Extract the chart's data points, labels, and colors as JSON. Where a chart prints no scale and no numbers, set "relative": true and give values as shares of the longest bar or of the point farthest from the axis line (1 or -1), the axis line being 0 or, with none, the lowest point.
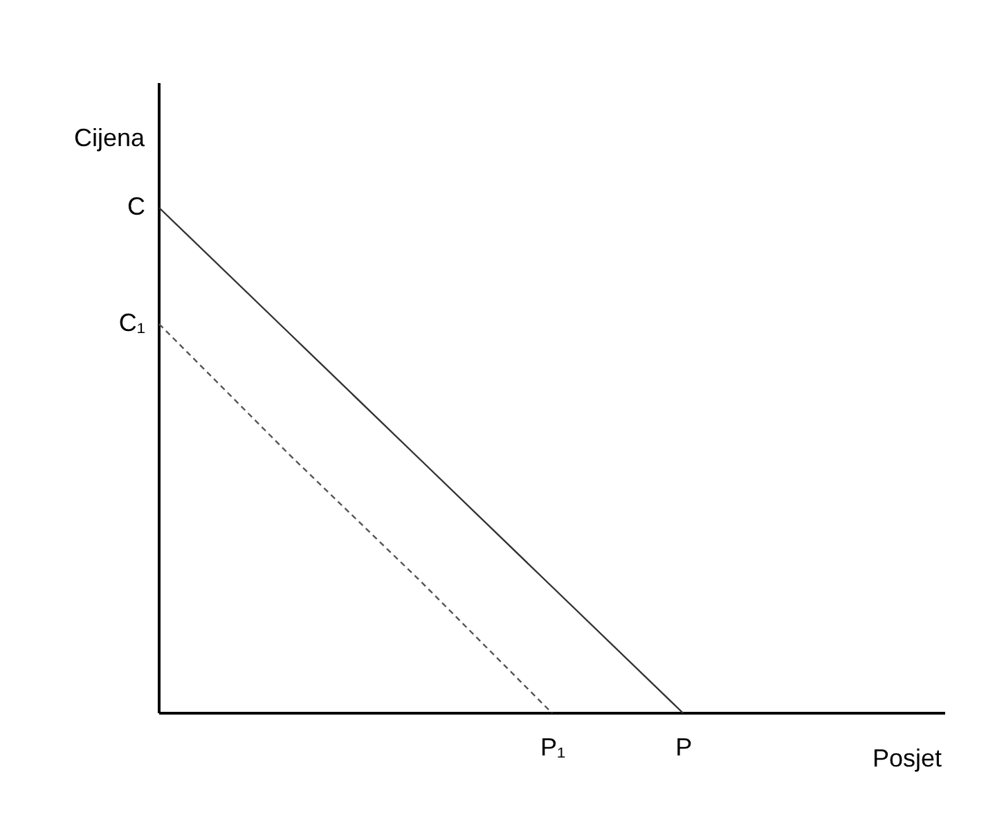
{
  "chart_data": {
    "type": "line",
    "relative": true,
    "xlabel": "Posjet",
    "ylabel": "Cijena",
    "categories": [
      null,
      null,
      null,
      "P₁",
      "P",
      null,
      null
    ],
    "series": [
      {
        "color": "#333333",
        "line_style": "solid",
        "values": [
          1,
          0.75,
          0.5,
          0.25,
          0,
          null,
          null
        ]
      },
      {
        "color": "#555555",
        "line_style": "dashed",
        "values": [
          0.77,
          0.51,
          0.26,
          0,
          null,
          null,
          null
        ]
      }
    ],
    "annotations": [
      "C",
      "C₁"
    ],
    "marker": "none",
    "grid": false
  }
}
